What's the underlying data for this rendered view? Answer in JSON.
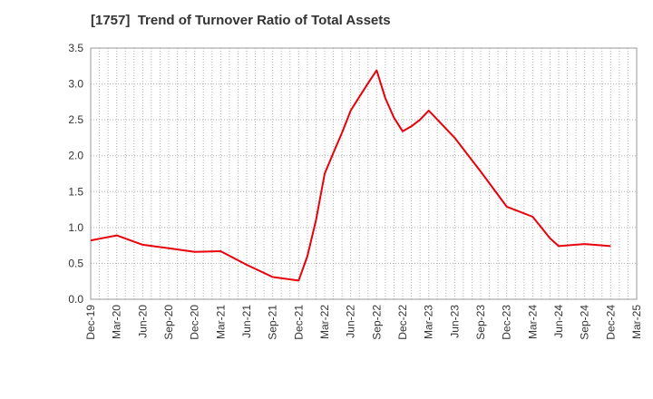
{
  "chart_data": {
    "type": "line",
    "title": "[1757]  Trend of Turnover Ratio of Total Assets",
    "xlabel": "",
    "ylabel": "",
    "ylim": [
      0,
      3.5
    ],
    "yticks": [
      "0.0",
      "0.5",
      "1.0",
      "1.5",
      "2.0",
      "2.5",
      "3.0",
      "3.5"
    ],
    "xticks": [
      "Dec-19",
      "Mar-20",
      "Jun-20",
      "Sep-20",
      "Dec-20",
      "Mar-21",
      "Jun-21",
      "Sep-21",
      "Dec-21",
      "Mar-22",
      "Jun-22",
      "Sep-22",
      "Dec-22",
      "Mar-23",
      "Jun-23",
      "Sep-23",
      "Dec-23",
      "Mar-24",
      "Jun-24",
      "Sep-24",
      "Dec-24",
      "Mar-25"
    ],
    "grid": true,
    "series": [
      {
        "color": "#e8000b",
        "x": [
          "Dec-19",
          "Mar-20",
          "Jun-20",
          "Sep-20",
          "Dec-20",
          "Mar-21",
          "Jun-21",
          "Sep-21",
          "Dec-21",
          "Jan-22",
          "Feb-22",
          "Mar-22",
          "Apr-22",
          "May-22",
          "Jun-22",
          "Jul-22",
          "Aug-22",
          "Sep-22",
          "Oct-22",
          "Nov-22",
          "Dec-22",
          "Jan-23",
          "Feb-23",
          "Mar-23",
          "Jun-23",
          "Sep-23",
          "Dec-23",
          "Mar-24",
          "Apr-24",
          "May-24",
          "Jun-24",
          "Sep-24",
          "Dec-24"
        ],
        "values": [
          0.82,
          0.89,
          0.76,
          0.71,
          0.66,
          0.67,
          0.48,
          0.31,
          0.26,
          0.6,
          1.1,
          1.75,
          2.04,
          2.32,
          2.63,
          2.82,
          3.01,
          3.19,
          2.8,
          2.53,
          2.34,
          2.41,
          2.5,
          2.63,
          2.25,
          1.78,
          1.29,
          1.15,
          1.0,
          0.85,
          0.74,
          0.77,
          0.74
        ]
      }
    ]
  }
}
